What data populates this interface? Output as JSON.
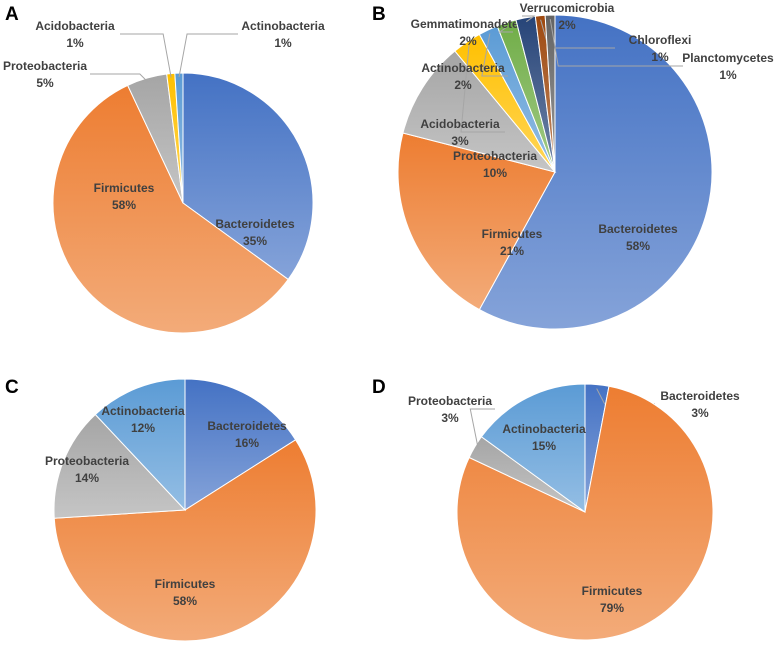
{
  "chart_data": [
    {
      "type": "pie",
      "panel": "A",
      "slices": [
        {
          "label": "Bacteroidetes",
          "value": 35,
          "text": "35%",
          "color": "#4472c4"
        },
        {
          "label": "Firmicutes",
          "value": 58,
          "text": "58%",
          "color": "#ed7d31"
        },
        {
          "label": "Proteobacteria",
          "value": 5,
          "text": "5%",
          "color": "#a5a5a5"
        },
        {
          "label": "Acidobacteria",
          "value": 1,
          "text": "1%",
          "color": "#ffc000"
        },
        {
          "label": "Actinobacteria",
          "value": 1,
          "text": "1%",
          "color": "#5b9bd5"
        }
      ]
    },
    {
      "type": "pie",
      "panel": "B",
      "slices": [
        {
          "label": "Bacteroidetes",
          "value": 58,
          "text": "58%",
          "color": "#4472c4"
        },
        {
          "label": "Firmicutes",
          "value": 21,
          "text": "21%",
          "color": "#ed7d31"
        },
        {
          "label": "Proteobacteria",
          "value": 10,
          "text": "10%",
          "color": "#a5a5a5"
        },
        {
          "label": "Acidobacteria",
          "value": 3,
          "text": "3%",
          "color": "#ffc000"
        },
        {
          "label": "Actinobacteria",
          "value": 2,
          "text": "2%",
          "color": "#5b9bd5"
        },
        {
          "label": "Gemmatimonadetes",
          "value": 2,
          "text": "2%",
          "color": "#70ad47"
        },
        {
          "label": "Verrucomicrobia",
          "value": 2,
          "text": "2%",
          "color": "#264478"
        },
        {
          "label": "Chloroflexi",
          "value": 1,
          "text": "1%",
          "color": "#9e480e"
        },
        {
          "label": "Planctomycetes",
          "value": 1,
          "text": "1%",
          "color": "#636363"
        }
      ]
    },
    {
      "type": "pie",
      "panel": "C",
      "slices": [
        {
          "label": "Bacteroidetes",
          "value": 16,
          "text": "16%",
          "color": "#4472c4"
        },
        {
          "label": "Firmicutes",
          "value": 58,
          "text": "58%",
          "color": "#ed7d31"
        },
        {
          "label": "Proteobacteria",
          "value": 14,
          "text": "14%",
          "color": "#a5a5a5"
        },
        {
          "label": "Actinobacteria",
          "value": 12,
          "text": "12%",
          "color": "#5b9bd5"
        }
      ]
    },
    {
      "type": "pie",
      "panel": "D",
      "slices": [
        {
          "label": "Bacteroidetes",
          "value": 3,
          "text": "3%",
          "color": "#4472c4"
        },
        {
          "label": "Firmicutes",
          "value": 79,
          "text": "79%",
          "color": "#ed7d31"
        },
        {
          "label": "Proteobacteria",
          "value": 3,
          "text": "3%",
          "color": "#a5a5a5"
        },
        {
          "label": "Actinobacteria",
          "value": 15,
          "text": "15%",
          "color": "#5b9bd5"
        }
      ]
    }
  ]
}
